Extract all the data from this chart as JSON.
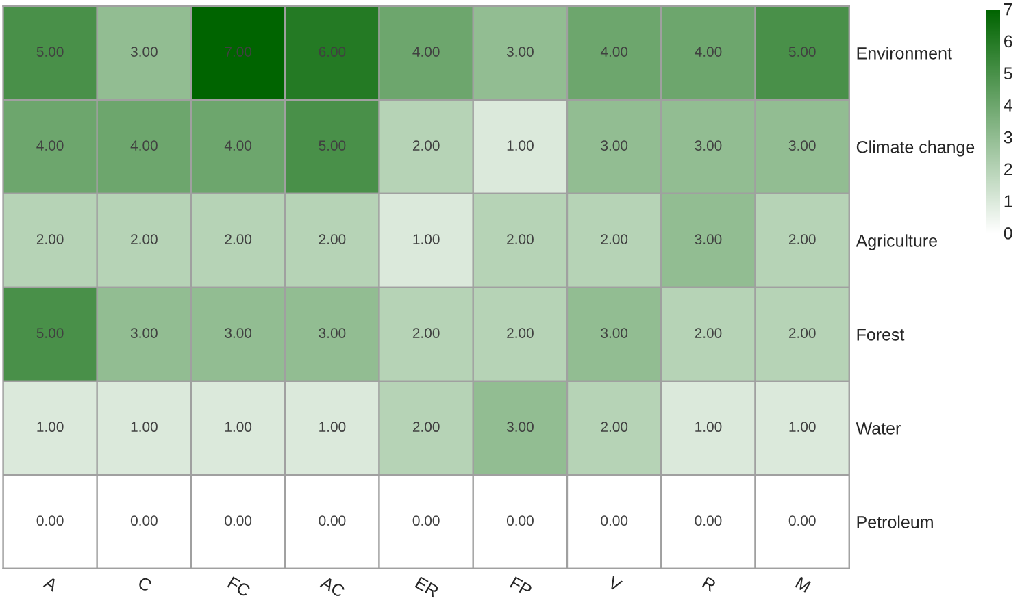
{
  "chart_data": {
    "type": "heatmap",
    "categories": [
      "A",
      "C",
      "FC",
      "AC",
      "ER",
      "FP",
      "V",
      "R",
      "M"
    ],
    "y_categories": [
      "Environment",
      "Climate change",
      "Agriculture",
      "Forest",
      "Water",
      "Petroleum"
    ],
    "cells": [
      [
        5,
        3,
        7,
        6,
        4,
        3,
        4,
        4,
        5
      ],
      [
        4,
        4,
        4,
        5,
        2,
        1,
        3,
        3,
        3
      ],
      [
        2,
        2,
        2,
        2,
        1,
        2,
        2,
        3,
        2
      ],
      [
        5,
        3,
        3,
        3,
        2,
        2,
        3,
        2,
        2
      ],
      [
        1,
        1,
        1,
        1,
        2,
        3,
        2,
        1,
        1
      ],
      [
        0,
        0,
        0,
        0,
        0,
        0,
        0,
        0,
        0
      ]
    ],
    "cell_labels": [
      [
        "5.00",
        "3.00",
        "7.00",
        "6.00",
        "4.00",
        "3.00",
        "4.00",
        "4.00",
        "5.00"
      ],
      [
        "4.00",
        "4.00",
        "4.00",
        "5.00",
        "2.00",
        "1.00",
        "3.00",
        "3.00",
        "3.00"
      ],
      [
        "2.00",
        "2.00",
        "2.00",
        "2.00",
        "1.00",
        "2.00",
        "2.00",
        "3.00",
        "2.00"
      ],
      [
        "5.00",
        "3.00",
        "3.00",
        "3.00",
        "2.00",
        "2.00",
        "3.00",
        "2.00",
        "2.00"
      ],
      [
        "1.00",
        "1.00",
        "1.00",
        "1.00",
        "2.00",
        "3.00",
        "2.00",
        "1.00",
        "1.00"
      ],
      [
        "0.00",
        "0.00",
        "0.00",
        "0.00",
        "0.00",
        "0.00",
        "0.00",
        "0.00",
        "0.00"
      ]
    ],
    "clim": [
      0,
      7
    ],
    "cticks": [
      0,
      1,
      2,
      3,
      4,
      5,
      6,
      7
    ]
  }
}
